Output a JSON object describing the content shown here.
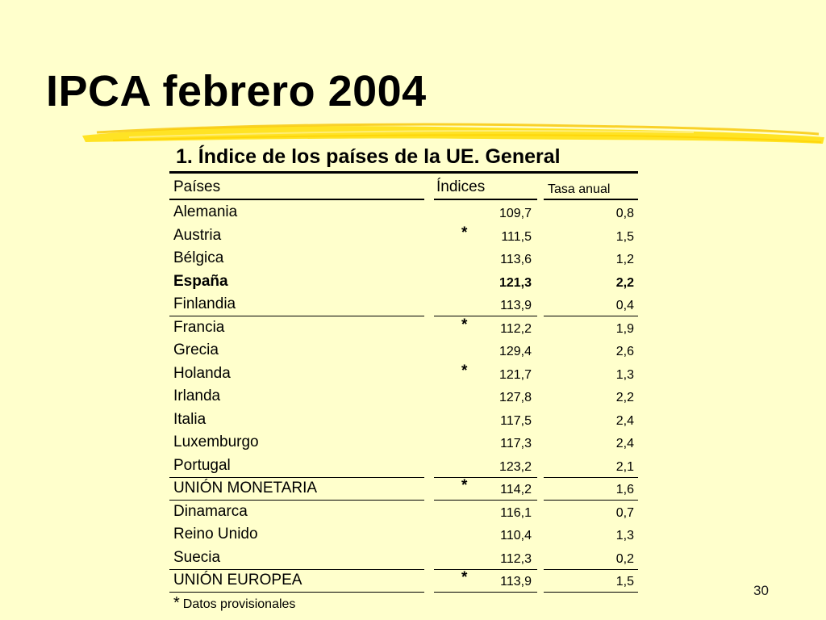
{
  "slide": {
    "title": "IPCA febrero 2004",
    "subtitle": "1. Índice de los países de la UE. General",
    "page_number": "30",
    "accent_color": "#ffe11a",
    "background_color": "#ffffcc"
  },
  "table": {
    "headers": {
      "country": "Países",
      "index": "Índices",
      "annual_rate": "Tasa anual"
    },
    "rows": [
      {
        "country": "Alemania",
        "mark": "",
        "index": "109,7",
        "rate": "0,8",
        "bold": false,
        "separator": false
      },
      {
        "country": "Austria",
        "mark": "*",
        "index": "111,5",
        "rate": "1,5",
        "bold": false,
        "separator": false
      },
      {
        "country": "Bélgica",
        "mark": "",
        "index": "113,6",
        "rate": "1,2",
        "bold": false,
        "separator": false
      },
      {
        "country": "España",
        "mark": "",
        "index": "121,3",
        "rate": "2,2",
        "bold": true,
        "separator": false
      },
      {
        "country": "Finlandia",
        "mark": "",
        "index": "113,9",
        "rate": "0,4",
        "bold": false,
        "separator": true
      },
      {
        "country": "Francia",
        "mark": "*",
        "index": "112,2",
        "rate": "1,9",
        "bold": false,
        "separator": false
      },
      {
        "country": "Grecia",
        "mark": "",
        "index": "129,4",
        "rate": "2,6",
        "bold": false,
        "separator": false
      },
      {
        "country": "Holanda",
        "mark": "*",
        "index": "121,7",
        "rate": "1,3",
        "bold": false,
        "separator": false
      },
      {
        "country": "Irlanda",
        "mark": "",
        "index": "127,8",
        "rate": "2,2",
        "bold": false,
        "separator": false
      },
      {
        "country": "Italia",
        "mark": "",
        "index": "117,5",
        "rate": "2,4",
        "bold": false,
        "separator": false
      },
      {
        "country": "Luxemburgo",
        "mark": "",
        "index": "117,3",
        "rate": "2,4",
        "bold": false,
        "separator": false
      },
      {
        "country": "Portugal",
        "mark": "",
        "index": "123,2",
        "rate": "2,1",
        "bold": false,
        "separator": true
      },
      {
        "country": "UNIÓN MONETARIA",
        "mark": "*",
        "index": "114,2",
        "rate": "1,6",
        "bold": false,
        "separator": true
      },
      {
        "country": "Dinamarca",
        "mark": "",
        "index": "116,1",
        "rate": "0,7",
        "bold": false,
        "separator": false
      },
      {
        "country": "Reino Unido",
        "mark": "",
        "index": "110,4",
        "rate": "1,3",
        "bold": false,
        "separator": false
      },
      {
        "country": "Suecia",
        "mark": "",
        "index": "112,3",
        "rate": "0,2",
        "bold": false,
        "separator": true
      },
      {
        "country": "UNIÓN EUROPEA",
        "mark": "*",
        "index": "113,9",
        "rate": "1,5",
        "bold": false,
        "separator": true
      }
    ]
  },
  "footnote": {
    "mark": "*",
    "text": "Datos provisionales"
  }
}
